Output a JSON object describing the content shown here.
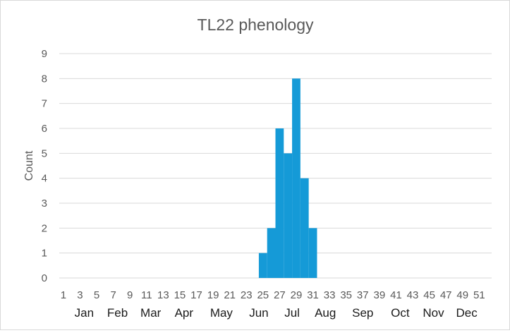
{
  "chart_data": {
    "type": "bar",
    "title": "TL22 phenology",
    "ylabel": "Count",
    "xlabel": "",
    "ylim": [
      0,
      9
    ],
    "yticks": [
      0,
      1,
      2,
      3,
      4,
      5,
      6,
      7,
      8,
      9
    ],
    "grid": true,
    "legend": "none",
    "bar_color": "#159ad7",
    "gridline_color": "#d9d9d9",
    "categories": [
      1,
      2,
      3,
      4,
      5,
      6,
      7,
      8,
      9,
      10,
      11,
      12,
      13,
      14,
      15,
      16,
      17,
      18,
      19,
      20,
      21,
      22,
      23,
      24,
      25,
      26,
      27,
      28,
      29,
      30,
      31,
      32,
      33,
      34,
      35,
      36,
      37,
      38,
      39,
      40,
      41,
      42,
      43,
      44,
      45,
      46,
      47,
      48,
      49,
      50,
      51,
      52
    ],
    "x_tick_labels": [
      1,
      3,
      5,
      7,
      9,
      11,
      13,
      15,
      17,
      19,
      21,
      23,
      25,
      27,
      29,
      31,
      33,
      35,
      37,
      39,
      41,
      43,
      45,
      47,
      49,
      51
    ],
    "values": [
      0,
      0,
      0,
      0,
      0,
      0,
      0,
      0,
      0,
      0,
      0,
      0,
      0,
      0,
      0,
      0,
      0,
      0,
      0,
      0,
      0,
      0,
      0,
      0,
      1,
      2,
      6,
      5,
      8,
      4,
      2,
      0,
      0,
      0,
      0,
      0,
      0,
      0,
      0,
      0,
      0,
      0,
      0,
      0,
      0,
      0,
      0,
      0,
      0,
      0,
      0,
      0
    ],
    "months": [
      {
        "label": "Jan",
        "week": 3.5
      },
      {
        "label": "Feb",
        "week": 7.5
      },
      {
        "label": "Mar",
        "week": 11.5
      },
      {
        "label": "Apr",
        "week": 15.5
      },
      {
        "label": "May",
        "week": 20
      },
      {
        "label": "Jun",
        "week": 24.5
      },
      {
        "label": "Jul",
        "week": 28.5
      },
      {
        "label": "Aug",
        "week": 32.5
      },
      {
        "label": "Sep",
        "week": 37
      },
      {
        "label": "Oct",
        "week": 41.5
      },
      {
        "label": "Nov",
        "week": 45.5
      },
      {
        "label": "Dec",
        "week": 49.5
      }
    ]
  }
}
